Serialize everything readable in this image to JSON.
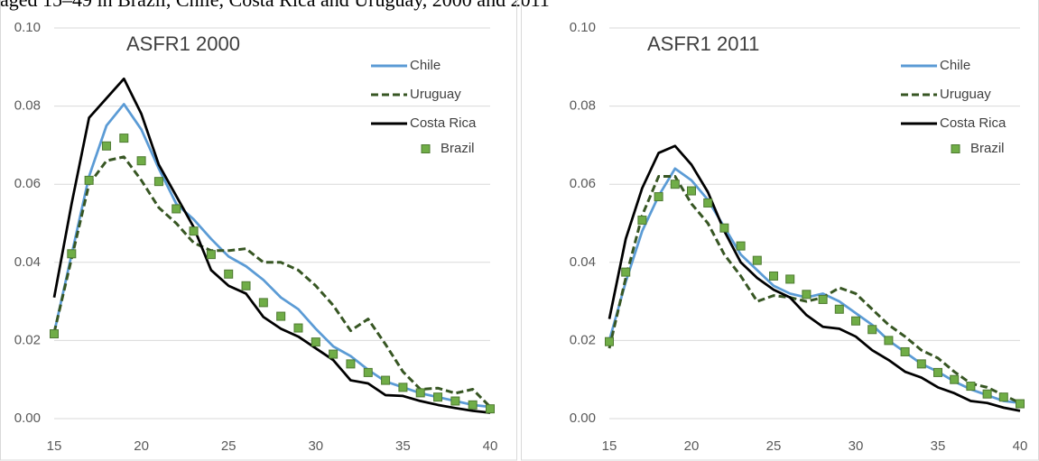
{
  "caption": "aged 15–49 in Brazil, Chile, Costa Rica and Uruguay, 2000 and 2011",
  "chart_data": [
    {
      "type": "line",
      "title": "ASFR1 2000",
      "x": [
        15,
        16,
        17,
        18,
        19,
        20,
        21,
        22,
        23,
        24,
        25,
        26,
        27,
        28,
        29,
        30,
        31,
        32,
        33,
        34,
        35,
        36,
        37,
        38,
        39,
        40
      ],
      "xlim": [
        15,
        40
      ],
      "xticks": [
        15,
        20,
        25,
        30,
        35,
        40
      ],
      "ylim": [
        0,
        0.1
      ],
      "yticks": [
        {
          "value": 0,
          "label": "0.00"
        },
        {
          "value": 0.02,
          "label": "0.02"
        },
        {
          "value": 0.04,
          "label": "0.04"
        },
        {
          "value": 0.06,
          "label": "0.06"
        },
        {
          "value": 0.08,
          "label": "0.08"
        },
        {
          "value": 0.1,
          "label": "0.10"
        }
      ],
      "grid": true,
      "legend": "upper right",
      "series": [
        {
          "name": "Chile",
          "color": "#5b9bd5",
          "style": "solid",
          "values": [
            0.022,
            0.042,
            0.062,
            0.075,
            0.0805,
            0.074,
            0.064,
            0.055,
            0.051,
            0.046,
            0.0415,
            0.039,
            0.0355,
            0.031,
            0.028,
            0.023,
            0.0185,
            0.016,
            0.0125,
            0.0095,
            0.008,
            0.0065,
            0.0055,
            0.0045,
            0.0035,
            0.003
          ]
        },
        {
          "name": "Uruguay",
          "color": "#375623",
          "style": "dashed",
          "values": [
            0.022,
            0.041,
            0.06,
            0.066,
            0.067,
            0.061,
            0.054,
            0.05,
            0.045,
            0.043,
            0.043,
            0.0435,
            0.04,
            0.04,
            0.038,
            0.034,
            0.029,
            0.0225,
            0.0255,
            0.019,
            0.012,
            0.0075,
            0.0078,
            0.0065,
            0.0075,
            0.003
          ]
        },
        {
          "name": "Costa Rica",
          "color": "#000000",
          "style": "solid",
          "values": [
            0.031,
            0.055,
            0.077,
            0.082,
            0.087,
            0.078,
            0.065,
            0.057,
            0.049,
            0.038,
            0.034,
            0.032,
            0.026,
            0.023,
            0.021,
            0.018,
            0.015,
            0.0098,
            0.009,
            0.006,
            0.0058,
            0.0045,
            0.0035,
            0.0027,
            0.002,
            0.0015
          ]
        },
        {
          "name": "Brazil",
          "color": "#70ad47",
          "style": "markers",
          "values": [
            0.0217,
            0.0422,
            0.061,
            0.0698,
            0.0718,
            0.066,
            0.0607,
            0.0537,
            0.048,
            0.042,
            0.037,
            0.034,
            0.0297,
            0.0262,
            0.0232,
            0.0196,
            0.0165,
            0.014,
            0.0118,
            0.0098,
            0.008,
            0.0066,
            0.0055,
            0.0045,
            0.0035,
            0.0025
          ]
        }
      ]
    },
    {
      "type": "line",
      "title": "ASFR1 2011",
      "x": [
        15,
        16,
        17,
        18,
        19,
        20,
        21,
        22,
        23,
        24,
        25,
        26,
        27,
        28,
        29,
        30,
        31,
        32,
        33,
        34,
        35,
        36,
        37,
        38,
        39,
        40
      ],
      "xlim": [
        15,
        40
      ],
      "xticks": [
        15,
        20,
        25,
        30,
        35,
        40
      ],
      "ylim": [
        0,
        0.1
      ],
      "yticks": [
        {
          "value": 0,
          "label": "0.00"
        },
        {
          "value": 0.02,
          "label": "0.02"
        },
        {
          "value": 0.04,
          "label": "0.04"
        },
        {
          "value": 0.06,
          "label": "0.06"
        },
        {
          "value": 0.08,
          "label": "0.08"
        },
        {
          "value": 0.1,
          "label": "0.10"
        }
      ],
      "grid": true,
      "legend": "upper right",
      "series": [
        {
          "name": "Chile",
          "color": "#5b9bd5",
          "style": "solid",
          "values": [
            0.02,
            0.035,
            0.048,
            0.057,
            0.064,
            0.061,
            0.056,
            0.049,
            0.042,
            0.038,
            0.034,
            0.032,
            0.031,
            0.032,
            0.03,
            0.027,
            0.024,
            0.02,
            0.017,
            0.014,
            0.012,
            0.0095,
            0.0075,
            0.006,
            0.0045,
            0.004
          ]
        },
        {
          "name": "Uruguay",
          "color": "#375623",
          "style": "dashed",
          "values": [
            0.018,
            0.036,
            0.052,
            0.062,
            0.062,
            0.055,
            0.05,
            0.042,
            0.0365,
            0.03,
            0.0315,
            0.031,
            0.03,
            0.031,
            0.0335,
            0.032,
            0.028,
            0.024,
            0.021,
            0.0175,
            0.0155,
            0.012,
            0.009,
            0.008,
            0.006,
            0.004
          ]
        },
        {
          "name": "Costa Rica",
          "color": "#000000",
          "style": "solid",
          "values": [
            0.0255,
            0.046,
            0.059,
            0.068,
            0.0698,
            0.065,
            0.058,
            0.048,
            0.04,
            0.036,
            0.033,
            0.031,
            0.0265,
            0.0235,
            0.023,
            0.021,
            0.0175,
            0.015,
            0.012,
            0.0105,
            0.008,
            0.0065,
            0.0045,
            0.004,
            0.0028,
            0.002
          ]
        },
        {
          "name": "Brazil",
          "color": "#70ad47",
          "style": "markers",
          "values": [
            0.0197,
            0.0375,
            0.0508,
            0.0568,
            0.06,
            0.0583,
            0.0552,
            0.0488,
            0.0442,
            0.0405,
            0.0365,
            0.0357,
            0.0318,
            0.0305,
            0.028,
            0.025,
            0.0228,
            0.02,
            0.0171,
            0.014,
            0.0118,
            0.01,
            0.0083,
            0.0063,
            0.0055,
            0.0038
          ]
        }
      ]
    }
  ]
}
